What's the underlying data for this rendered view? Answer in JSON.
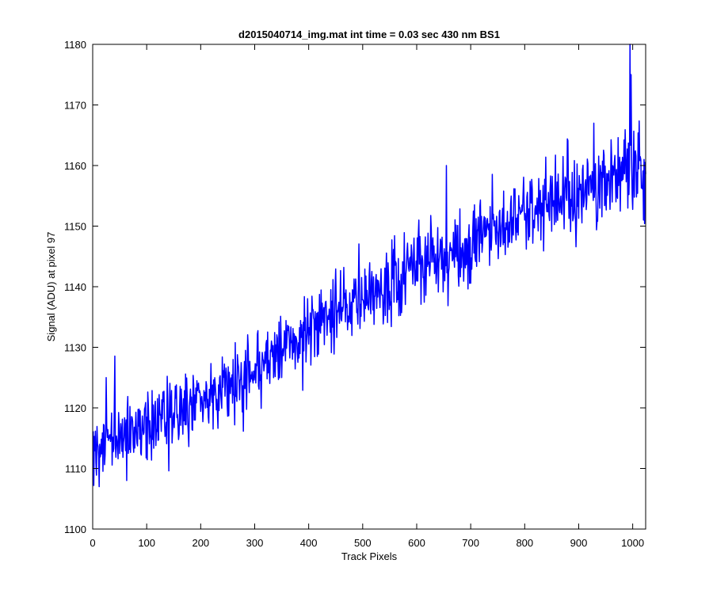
{
  "chart_data": {
    "type": "line",
    "title": "d2015040714_img.mat int time = 0.03 sec  430 nm BS1",
    "xlabel": "Track Pixels",
    "ylabel": "Signal (ADU) at pixel 97",
    "xlim": [
      0,
      1024
    ],
    "ylim": [
      1100,
      1180
    ],
    "xticks": [
      0,
      100,
      200,
      300,
      400,
      500,
      600,
      700,
      800,
      900,
      1000
    ],
    "yticks": [
      1100,
      1110,
      1120,
      1130,
      1140,
      1150,
      1160,
      1170,
      1180
    ],
    "grid": false,
    "series": [
      {
        "color": "#0000ff",
        "x_start": 1,
        "x_step": 1,
        "trend_anchors_x": [
          0,
          50,
          100,
          150,
          200,
          250,
          300,
          350,
          400,
          450,
          500,
          550,
          600,
          650,
          700,
          750,
          800,
          850,
          900,
          950,
          1000,
          1024
        ],
        "trend_anchors_y": [
          1113,
          1115,
          1117,
          1120,
          1122,
          1124,
          1126,
          1129,
          1133,
          1136,
          1138,
          1140,
          1143,
          1145,
          1148,
          1150,
          1152,
          1154,
          1156,
          1158,
          1160,
          1157
        ],
        "noise_sd": 3.2,
        "seed": 20150407,
        "extremes": [
          {
            "x": 995,
            "y": 1180
          },
          {
            "x": 997,
            "y": 1175
          },
          {
            "x": 928,
            "y": 1167
          },
          {
            "x": 12,
            "y": 1107
          },
          {
            "x": 63,
            "y": 1108
          },
          {
            "x": 1020,
            "y": 1151
          },
          {
            "x": 25,
            "y": 1125
          },
          {
            "x": 655,
            "y": 1160
          }
        ]
      }
    ]
  }
}
